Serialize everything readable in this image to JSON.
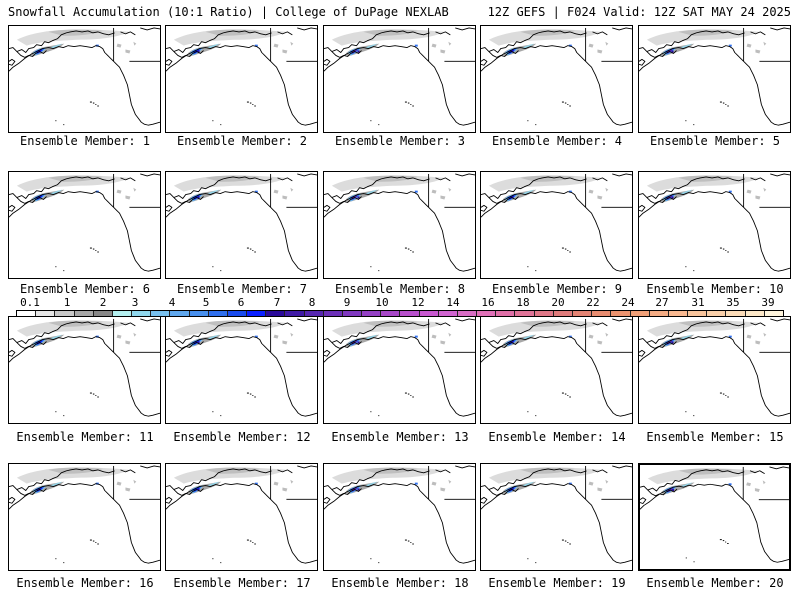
{
  "header": {
    "left_title": "Snowfall Accumulation (10:1 Ratio) | College of DuPage NEXLAB",
    "right_title": "12Z GEFS | F024 Valid: 12Z SAT MAY 24 2025"
  },
  "colorbar": {
    "ticks": [
      "0.1",
      "1",
      "2",
      "3",
      "4",
      "5",
      "6",
      "7",
      "8",
      "9",
      "10",
      "12",
      "14",
      "16",
      "18",
      "20",
      "22",
      "24",
      "27",
      "31",
      "35",
      "39"
    ],
    "colors": [
      "#ffffff",
      "#e6e6e6",
      "#c8c8c8",
      "#a8a8a8",
      "#888888",
      "#b4f0f0",
      "#90d8ee",
      "#78c0ee",
      "#60a8ee",
      "#4890ee",
      "#3070ee",
      "#1a4cee",
      "#0a20ff",
      "#2a0a9a",
      "#401aa6",
      "#5626b0",
      "#6c30b8",
      "#8038c0",
      "#9440c4",
      "#a848c8",
      "#b850cc",
      "#c858d0",
      "#d064d0",
      "#d86cc4",
      "#e070b8",
      "#e070a8",
      "#e07498",
      "#e07888",
      "#e07c7c",
      "#e48474",
      "#e88c70",
      "#ec9470",
      "#f0a078",
      "#f4ac84",
      "#f8b890",
      "#f8c49c",
      "#fad0aa",
      "#fcdcb8",
      "#fde8c8",
      "#fef4dc"
    ]
  },
  "panels": [
    {
      "label": "Ensemble Member: 1"
    },
    {
      "label": "Ensemble Member: 2"
    },
    {
      "label": "Ensemble Member: 3"
    },
    {
      "label": "Ensemble Member: 4"
    },
    {
      "label": "Ensemble Member: 5"
    },
    {
      "label": "Ensemble Member: 6"
    },
    {
      "label": "Ensemble Member: 7"
    },
    {
      "label": "Ensemble Member: 8"
    },
    {
      "label": "Ensemble Member: 9"
    },
    {
      "label": "Ensemble Member: 10"
    },
    {
      "label": "Ensemble Member: 11"
    },
    {
      "label": "Ensemble Member: 12"
    },
    {
      "label": "Ensemble Member: 13"
    },
    {
      "label": "Ensemble Member: 14"
    },
    {
      "label": "Ensemble Member: 15"
    },
    {
      "label": "Ensemble Member: 16"
    },
    {
      "label": "Ensemble Member: 17"
    },
    {
      "label": "Ensemble Member: 18"
    },
    {
      "label": "Ensemble Member: 19"
    },
    {
      "label": "Ensemble Member: 20",
      "selected": true
    }
  ]
}
